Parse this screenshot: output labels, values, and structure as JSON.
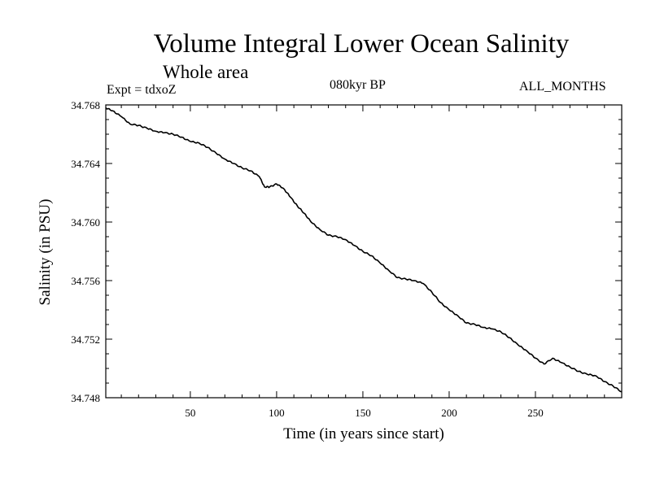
{
  "header": {
    "title": "Volume Integral Lower Ocean Salinity",
    "subtitle": "Whole area",
    "expt": "Expt = tdxoZ",
    "period": "080kyr BP",
    "months": "ALL_MONTHS"
  },
  "chart_data": {
    "type": "line",
    "xlabel": "Time (in years since start)",
    "ylabel": "Salinity (in PSU)",
    "xlim": [
      1,
      300
    ],
    "ylim": [
      34.748,
      34.768
    ],
    "xticks": [
      50,
      100,
      150,
      200,
      250
    ],
    "yticks": [
      34.748,
      34.752,
      34.756,
      34.76,
      34.764,
      34.768
    ],
    "ytick_labels": [
      "34.748",
      "34.752",
      "34.756",
      "34.760",
      "34.764",
      "34.768"
    ],
    "grid": false,
    "series": [
      {
        "color": "#000000",
        "x": [
          1,
          5,
          10,
          15,
          20,
          25,
          30,
          35,
          40,
          45,
          50,
          55,
          60,
          65,
          70,
          75,
          80,
          85,
          90,
          93,
          96,
          100,
          104,
          108,
          112,
          116,
          120,
          125,
          130,
          135,
          140,
          145,
          150,
          155,
          160,
          165,
          170,
          175,
          180,
          185,
          190,
          195,
          200,
          205,
          210,
          215,
          220,
          225,
          230,
          235,
          240,
          245,
          250,
          255,
          260,
          265,
          270,
          275,
          280,
          285,
          290,
          295,
          300
        ],
        "y": [
          34.7678,
          34.7676,
          34.7672,
          34.7667,
          34.7666,
          34.7664,
          34.7662,
          34.7661,
          34.766,
          34.7658,
          34.7655,
          34.7654,
          34.7651,
          34.7647,
          34.7643,
          34.764,
          34.7637,
          34.7635,
          34.7631,
          34.7624,
          34.7624,
          34.7626,
          34.7623,
          34.7617,
          34.7611,
          34.7606,
          34.76,
          34.7595,
          34.7591,
          34.759,
          34.7588,
          34.7584,
          34.758,
          34.7577,
          34.7572,
          34.7567,
          34.7562,
          34.7561,
          34.756,
          34.7558,
          34.7552,
          34.7545,
          34.754,
          34.7536,
          34.7531,
          34.753,
          34.7528,
          34.7527,
          34.7525,
          34.7521,
          34.7516,
          34.7512,
          34.7507,
          34.7503,
          34.7507,
          34.7504,
          34.7501,
          34.7498,
          34.7496,
          34.7495,
          34.7491,
          34.7488,
          34.7484
        ]
      }
    ]
  }
}
